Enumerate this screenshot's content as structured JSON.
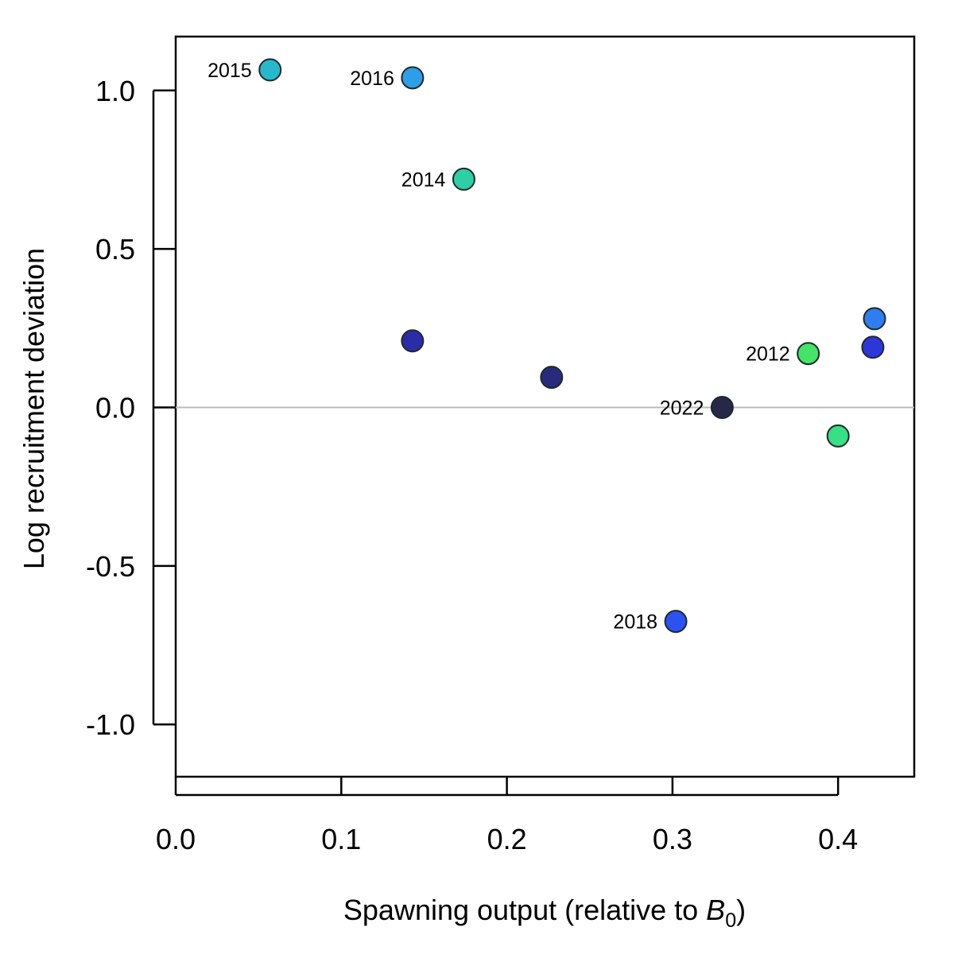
{
  "chart_data": {
    "type": "scatter",
    "title": "",
    "xlabel": "Spawning output (relative to B0)",
    "xlabel_parts": {
      "prefix": "Spawning output (relative to ",
      "symbol": "B",
      "subscript": "0",
      "suffix": ")"
    },
    "ylabel": "Log recruitment deviation",
    "xlim": [
      0.0,
      0.446
    ],
    "ylim": [
      -1.165,
      1.17
    ],
    "xticks": [
      0.0,
      0.1,
      0.2,
      0.3,
      0.4
    ],
    "xtick_labels": [
      "0.0",
      "0.1",
      "0.2",
      "0.3",
      "0.4"
    ],
    "yticks": [
      -1.0,
      -0.5,
      0.0,
      0.5,
      1.0
    ],
    "ytick_labels": [
      "-1.0",
      "-0.5",
      "0.0",
      "0.5",
      "1.0"
    ],
    "reference_line": {
      "y": 0.0,
      "color": "#bbbbbb"
    },
    "grid": false,
    "points": [
      {
        "x": 0.382,
        "y": 0.17,
        "label": "2012",
        "color": "#44e36a"
      },
      {
        "x": 0.4,
        "y": -0.09,
        "label": "",
        "color": "#38df84"
      },
      {
        "x": 0.174,
        "y": 0.72,
        "label": "2014",
        "color": "#2fcfa6"
      },
      {
        "x": 0.057,
        "y": 1.065,
        "label": "2015",
        "color": "#28b8cc"
      },
      {
        "x": 0.143,
        "y": 1.04,
        "label": "2016",
        "color": "#2f9ee8"
      },
      {
        "x": 0.422,
        "y": 0.28,
        "label": "",
        "color": "#2f7df0"
      },
      {
        "x": 0.302,
        "y": -0.675,
        "label": "2018",
        "color": "#2e52f0"
      },
      {
        "x": 0.421,
        "y": 0.19,
        "label": "",
        "color": "#2e36d8"
      },
      {
        "x": 0.143,
        "y": 0.21,
        "label": "",
        "color": "#2b2ca8"
      },
      {
        "x": 0.227,
        "y": 0.095,
        "label": "",
        "color": "#2a2a7c"
      },
      {
        "x": 0.33,
        "y": 0.0,
        "label": "2022",
        "color": "#272748"
      }
    ]
  }
}
